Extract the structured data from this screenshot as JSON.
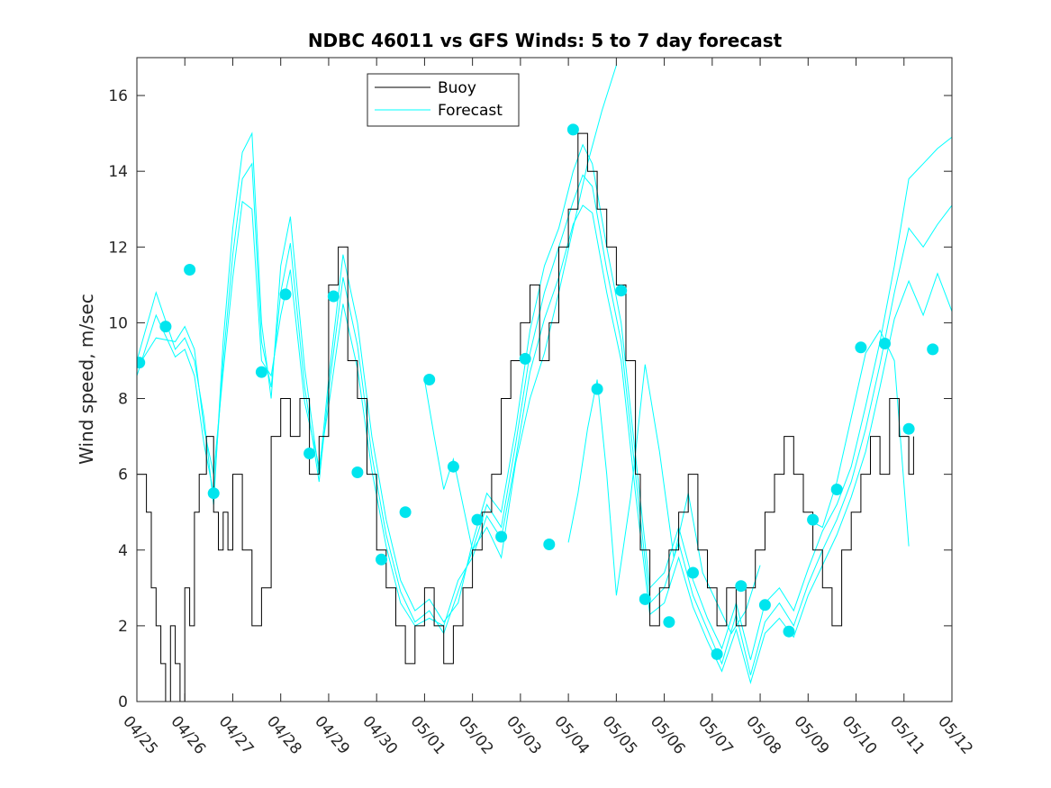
{
  "chart_data": {
    "type": "line",
    "title": "NDBC 46011 vs GFS Winds: 5 to 7 day forecast",
    "xlabel": "",
    "ylabel": "Wind speed, m/sec",
    "xlim": [
      0,
      17
    ],
    "ylim": [
      0,
      17
    ],
    "x_ticks": [
      {
        "x": 0,
        "label": "04/25"
      },
      {
        "x": 1,
        "label": "04/26"
      },
      {
        "x": 2,
        "label": "04/27"
      },
      {
        "x": 3,
        "label": "04/28"
      },
      {
        "x": 4,
        "label": "04/29"
      },
      {
        "x": 5,
        "label": "04/30"
      },
      {
        "x": 6,
        "label": "05/01"
      },
      {
        "x": 7,
        "label": "05/02"
      },
      {
        "x": 8,
        "label": "05/03"
      },
      {
        "x": 9,
        "label": "05/04"
      },
      {
        "x": 10,
        "label": "05/05"
      },
      {
        "x": 11,
        "label": "05/06"
      },
      {
        "x": 12,
        "label": "05/07"
      },
      {
        "x": 13,
        "label": "05/08"
      },
      {
        "x": 14,
        "label": "05/09"
      },
      {
        "x": 15,
        "label": "05/10"
      },
      {
        "x": 16,
        "label": "05/11"
      },
      {
        "x": 17,
        "label": "05/12"
      }
    ],
    "y_ticks": [
      0,
      2,
      4,
      6,
      8,
      10,
      12,
      14,
      16
    ],
    "legend": {
      "placement": "top-center",
      "entries": [
        "Buoy",
        "Forecast"
      ]
    },
    "grid": false,
    "colors": {
      "buoy": "#000000",
      "forecast": "#00ffff",
      "markers": "#00e5ee",
      "axis": "#262626"
    },
    "buoy": {
      "name": "Buoy",
      "x": [
        0,
        0.2,
        0.3,
        0.4,
        0.5,
        0.6,
        0.7,
        0.8,
        0.9,
        1.0,
        1.1,
        1.2,
        1.3,
        1.45,
        1.6,
        1.7,
        1.8,
        1.9,
        2.0,
        2.2,
        2.4,
        2.6,
        2.8,
        3.0,
        3.2,
        3.4,
        3.6,
        3.8,
        4.0,
        4.2,
        4.4,
        4.6,
        4.8,
        5.0,
        5.2,
        5.4,
        5.6,
        5.8,
        6.0,
        6.2,
        6.4,
        6.6,
        6.8,
        7.0,
        7.2,
        7.4,
        7.6,
        7.8,
        8.0,
        8.2,
        8.4,
        8.6,
        8.8,
        9.0,
        9.2,
        9.4,
        9.6,
        9.8,
        10.0,
        10.2,
        10.4,
        10.5,
        10.7,
        10.9,
        11.1,
        11.3,
        11.5,
        11.7,
        11.9,
        12.1,
        12.3,
        12.5,
        12.7,
        12.9,
        13.1,
        13.3,
        13.5,
        13.7,
        13.9,
        14.1,
        14.3,
        14.5,
        14.7,
        14.9,
        15.1,
        15.3,
        15.5,
        15.7,
        15.9,
        16.1,
        16.2
      ],
      "y": [
        6,
        5,
        3,
        2,
        1,
        0,
        2,
        1,
        0,
        3,
        2,
        5,
        6,
        7,
        5,
        4,
        5,
        4,
        6,
        4,
        2,
        3,
        7,
        8,
        7,
        8,
        6,
        7,
        11,
        12,
        9,
        8,
        6,
        4,
        3,
        2,
        1,
        2,
        3,
        2,
        1,
        2,
        3,
        4,
        5,
        6,
        8,
        9,
        10,
        11,
        9,
        10,
        12,
        13,
        15,
        14,
        13,
        12,
        11,
        9,
        6,
        4,
        2,
        3,
        4,
        5,
        6,
        4,
        3,
        2,
        3,
        2,
        3,
        4,
        5,
        6,
        7,
        6,
        5,
        4,
        3,
        2,
        4,
        5,
        6,
        7,
        6,
        8,
        7,
        6,
        7
      ]
    },
    "forecast_series": [
      {
        "x": [
          0,
          0.4,
          0.8,
          1.0,
          1.2,
          1.4,
          1.6,
          1.8,
          2.0,
          2.2,
          2.4,
          2.6,
          2.8,
          3.0,
          3.2,
          3.5,
          3.8,
          4.0,
          4.3,
          4.6,
          4.9,
          5.2,
          5.5,
          5.8,
          6.1,
          6.4,
          6.7,
          7.0,
          7.3,
          7.6,
          7.9,
          8.2,
          8.5,
          8.8,
          9.1,
          9.3,
          9.5,
          9.8,
          10.1,
          10.4,
          10.7,
          11.0,
          11.3,
          11.6,
          11.9,
          12.2,
          12.5,
          12.8,
          13.1,
          13.4,
          13.7,
          14.0,
          14.3,
          14.6,
          14.9,
          15.2,
          15.5,
          15.8,
          16.1,
          16.4,
          16.7,
          17.0
        ],
        "y": [
          9,
          10.8,
          9.3,
          9.6,
          9.0,
          7.5,
          5.2,
          9.5,
          12.5,
          14.5,
          15.0,
          10.0,
          8.0,
          11.5,
          12.8,
          8.8,
          6.0,
          8.5,
          11.8,
          10.0,
          7.0,
          4.8,
          3.2,
          2.4,
          2.7,
          2.1,
          2.6,
          4.2,
          5.5,
          5.0,
          7.2,
          9.8,
          11.5,
          12.5,
          14.0,
          14.7,
          14.2,
          12.0,
          10.0,
          6.5,
          3.0,
          3.4,
          4.6,
          3.2,
          2.2,
          1.4,
          2.6,
          1.1,
          2.6,
          3.0,
          2.4,
          3.5,
          4.5,
          5.2,
          6.2,
          7.8,
          9.5,
          11.5,
          13.8,
          14.2,
          14.6,
          14.9
        ]
      },
      {
        "x": [
          0,
          0.4,
          0.8,
          1.0,
          1.2,
          1.4,
          1.6,
          1.8,
          2.0,
          2.2,
          2.4,
          2.6,
          2.8,
          3.0,
          3.2,
          3.5,
          3.8,
          4.0,
          4.3,
          4.6,
          4.9,
          5.2,
          5.5,
          5.8,
          6.1,
          6.4,
          6.7,
          7.0,
          7.3,
          7.6,
          7.9,
          8.2,
          8.5,
          8.8,
          9.1,
          9.3,
          9.5,
          9.8,
          10.1,
          10.4,
          10.7,
          11.0,
          11.3,
          11.6,
          11.9,
          12.2,
          12.5,
          12.8,
          13.1,
          13.4,
          13.7,
          14.0,
          14.3,
          14.6,
          14.9,
          15.2,
          15.5,
          15.8,
          16.1,
          16.4,
          16.7,
          17.0
        ],
        "y": [
          8.6,
          10.2,
          9.1,
          9.3,
          8.6,
          6.8,
          5.5,
          9.0,
          11.8,
          13.8,
          14.2,
          9.5,
          8.3,
          10.8,
          12.1,
          8.3,
          5.8,
          8.2,
          11.2,
          9.4,
          6.5,
          4.4,
          2.9,
          2.1,
          2.4,
          1.8,
          2.9,
          4.0,
          5.2,
          4.6,
          6.8,
          9.2,
          10.8,
          12.0,
          13.2,
          13.9,
          13.6,
          11.4,
          9.5,
          6.0,
          2.6,
          3.0,
          4.2,
          2.8,
          1.9,
          1.0,
          2.3,
          0.7,
          2.1,
          2.6,
          2.0,
          3.1,
          4.0,
          4.8,
          5.8,
          7.2,
          8.9,
          10.8,
          12.5,
          12.0,
          12.6,
          13.1
        ]
      },
      {
        "x": [
          0,
          0.4,
          0.8,
          1.0,
          1.2,
          1.4,
          1.6,
          1.8,
          2.0,
          2.2,
          2.4,
          2.6,
          2.8,
          3.0,
          3.2,
          3.5,
          3.8,
          4.0,
          4.3,
          4.6,
          4.9,
          5.2,
          5.5,
          5.8,
          6.1,
          6.4,
          6.7,
          7.0,
          7.3,
          7.6,
          7.9,
          8.2,
          8.5,
          8.8,
          9.1,
          9.3,
          9.5,
          9.8,
          10.1,
          10.4,
          10.7,
          11.0,
          11.3,
          11.6,
          11.9,
          12.2,
          12.5,
          12.8,
          13.1,
          13.4,
          13.7,
          14.0,
          14.3,
          14.6,
          14.9,
          15.2,
          15.5,
          15.8,
          16.1,
          16.4,
          16.7,
          17.0
        ],
        "y": [
          8.8,
          9.6,
          9.5,
          9.9,
          9.3,
          7.2,
          6.0,
          8.7,
          11.2,
          13.2,
          13.0,
          9.0,
          8.6,
          10.2,
          11.4,
          7.9,
          6.2,
          7.8,
          10.5,
          8.8,
          6.1,
          4.1,
          2.6,
          2.0,
          2.2,
          2.0,
          3.2,
          3.8,
          4.9,
          4.3,
          6.4,
          8.7,
          10.1,
          11.2,
          12.6,
          13.1,
          12.9,
          10.8,
          9.0,
          5.5,
          2.3,
          2.6,
          3.8,
          2.5,
          1.6,
          0.8,
          1.9,
          0.5,
          1.8,
          2.2,
          1.7,
          2.8,
          3.6,
          4.4,
          5.4,
          6.6,
          8.3,
          10.1,
          11.1,
          10.2,
          11.3,
          10.3
        ]
      },
      {
        "x": [
          6.0,
          6.2,
          6.4,
          6.6,
          6.8,
          7.0,
          7.3,
          7.6,
          7.9,
          8.2,
          8.5,
          8.8,
          9.1,
          9.4,
          9.7,
          10.0
        ],
        "y": [
          8.5,
          7.0,
          5.6,
          6.4,
          5.2,
          4.0,
          4.6,
          3.8,
          6.3,
          8.0,
          9.2,
          10.8,
          12.5,
          14.2,
          15.6,
          16.8
        ]
      },
      {
        "x": [
          9.0,
          9.2,
          9.4,
          9.6,
          9.8,
          10.0,
          10.3,
          10.6,
          10.9,
          11.2,
          11.5,
          11.8,
          12.1,
          12.4,
          12.7,
          13.0
        ],
        "y": [
          4.2,
          5.5,
          7.2,
          8.5,
          6.0,
          2.8,
          5.4,
          8.9,
          6.6,
          3.8,
          5.5,
          3.4,
          2.6,
          1.8,
          2.4,
          3.6
        ]
      },
      {
        "x": [
          14.0,
          14.3,
          14.6,
          14.9,
          15.2,
          15.5,
          15.8,
          16.1
        ],
        "y": [
          4.8,
          4.6,
          5.8,
          7.5,
          9.2,
          9.8,
          9.0,
          4.1
        ]
      }
    ],
    "forecast_points": {
      "x": [
        0.05,
        0.6,
        1.1,
        1.6,
        2.6,
        3.1,
        3.6,
        4.1,
        4.6,
        5.1,
        5.6,
        6.1,
        6.6,
        7.1,
        7.6,
        8.1,
        8.6,
        9.1,
        9.6,
        10.1,
        10.6,
        11.1,
        11.6,
        12.1,
        12.6,
        13.1,
        13.6,
        14.1,
        14.6,
        15.1,
        15.6,
        16.1,
        16.6
      ],
      "y": [
        8.95,
        9.9,
        11.4,
        5.5,
        8.7,
        10.75,
        6.55,
        10.7,
        6.05,
        3.75,
        5.0,
        8.5,
        6.2,
        4.8,
        4.35,
        9.05,
        4.15,
        15.1,
        8.25,
        10.85,
        2.7,
        2.1,
        3.4,
        1.25,
        3.05,
        2.55,
        1.85,
        4.8,
        5.6,
        9.35,
        9.45,
        7.2,
        9.3
      ]
    }
  }
}
